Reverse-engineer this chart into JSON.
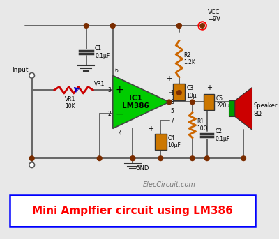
{
  "bg_color": "#e8e8e8",
  "title_text": "Mini Amplfier circuit using LM386",
  "title_color": "#ff0000",
  "title_box_color": "#0000ff",
  "title_bg": "#ffffff",
  "watermark": "ElecCircuit.com",
  "vcc_label": "VCC\n+9V",
  "gnd_label": "GND",
  "input_label": "Input",
  "speaker_label": "Speaker",
  "speaker_ohm": "8Ω",
  "ic_label": "IC1\nLM386",
  "wire_color": "#666666",
  "dot_color": "#7B2D00",
  "resistor_color": "#CC6600",
  "cap_color": "#CC7700",
  "cap_dark": "#333333",
  "vr1_color": "#cc0000"
}
